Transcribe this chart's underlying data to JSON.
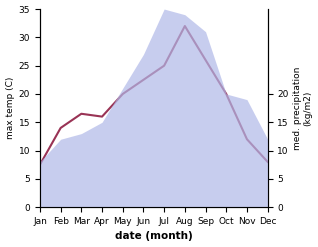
{
  "months": [
    "Jan",
    "Feb",
    "Mar",
    "Apr",
    "May",
    "Jun",
    "Jul",
    "Aug",
    "Sep",
    "Oct",
    "Nov",
    "Dec"
  ],
  "temp_max": [
    7.5,
    14.0,
    16.5,
    16.0,
    20.0,
    22.5,
    25.0,
    32.0,
    26.0,
    20.0,
    12.0,
    8.0
  ],
  "precip": [
    8.0,
    12.0,
    13.0,
    15.0,
    21.0,
    27.0,
    35.0,
    34.0,
    31.0,
    20.0,
    19.0,
    12.0
  ],
  "temp_ylim": [
    0,
    35
  ],
  "precip_ylim": [
    0,
    35
  ],
  "temp_yticks": [
    0,
    5,
    10,
    15,
    20,
    25,
    30,
    35
  ],
  "precip_yticks": [
    0,
    5,
    10,
    15,
    20
  ],
  "ylabel_left": "max temp (C)",
  "ylabel_right": "med. precipitation\n(kg/m2)",
  "xlabel": "date (month)",
  "fill_color": "#b0b8e8",
  "fill_alpha": 0.7,
  "line_color": "#993355",
  "background_color": "#ffffff"
}
